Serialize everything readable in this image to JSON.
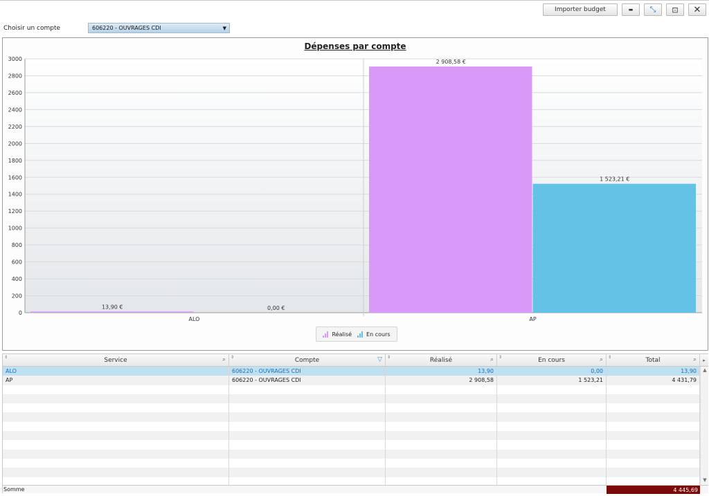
{
  "toolbar": {
    "import_label": "Importer budget",
    "minimize_glyph": "▬",
    "compress_glyph": "⤡",
    "restore_glyph": "⊡",
    "close_glyph": "✕"
  },
  "account": {
    "label": "Choisir un compte",
    "selected": "606220 - OUVRAGES CDI"
  },
  "chart_data": {
    "type": "bar",
    "title": "Dépenses par compte",
    "categories": [
      "ALO",
      "AP"
    ],
    "series": [
      {
        "name": "Réalisé",
        "values": [
          13.9,
          2908.58
        ],
        "labels": [
          "13,90 €",
          "2 908,58 €"
        ],
        "color": "#d899f8"
      },
      {
        "name": "En cours",
        "values": [
          0.0,
          1523.21
        ],
        "labels": [
          "0,00 €",
          "1 523,21 €"
        ],
        "color": "#64c2e6"
      }
    ],
    "ylim": [
      0,
      3000
    ],
    "yticks": [
      0,
      200,
      400,
      600,
      800,
      1000,
      1200,
      1400,
      1600,
      1800,
      2000,
      2200,
      2400,
      2600,
      2800,
      3000
    ],
    "grid": true,
    "legend_position": "bottom-center"
  },
  "grid": {
    "columns": [
      "Service",
      "Compte",
      "Réalisé",
      "En cours",
      "Total"
    ],
    "rows": [
      {
        "service": "ALO",
        "compte": "606220 - OUVRAGES CDI",
        "realise": "13,90",
        "en_cours": "0,00",
        "total": "13,90",
        "selected": true
      },
      {
        "service": "AP",
        "compte": "606220 - OUVRAGES CDI",
        "realise": "2 908,58",
        "en_cours": "1 523,21",
        "total": "4 431,79",
        "selected": false
      }
    ],
    "footer_label": "Somme",
    "footer_total": "4 445,69"
  }
}
